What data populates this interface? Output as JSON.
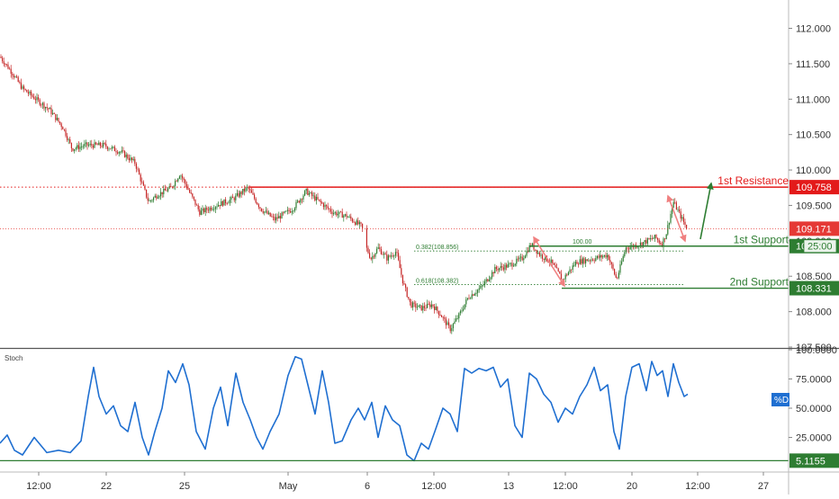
{
  "chart_data": [
    {
      "type": "candlestick",
      "ylim": [
        107.5,
        112.4
      ],
      "y_ticks": [
        {
          "value": 112.0,
          "label": "112.000"
        },
        {
          "value": 111.5,
          "label": "111.500"
        },
        {
          "value": 111.0,
          "label": "111.000"
        },
        {
          "value": 110.5,
          "label": "110.500"
        },
        {
          "value": 110.0,
          "label": "110.000"
        },
        {
          "value": 109.5,
          "label": "109.500"
        },
        {
          "value": 109.0,
          "label": "109.000"
        },
        {
          "value": 108.5,
          "label": "108.500"
        },
        {
          "value": 108.0,
          "label": "108.000"
        },
        {
          "value": 107.5,
          "label": "107.500"
        }
      ],
      "price_path": [
        [
          0,
          111.6
        ],
        [
          12,
          111.4
        ],
        [
          25,
          111.15
        ],
        [
          40,
          111.0
        ],
        [
          55,
          110.85
        ],
        [
          70,
          110.6
        ],
        [
          80,
          110.3
        ],
        [
          95,
          110.35
        ],
        [
          115,
          110.35
        ],
        [
          135,
          110.25
        ],
        [
          150,
          110.1
        ],
        [
          158,
          109.8
        ],
        [
          165,
          109.55
        ],
        [
          175,
          109.65
        ],
        [
          190,
          109.75
        ],
        [
          200,
          109.95
        ],
        [
          212,
          109.65
        ],
        [
          222,
          109.4
        ],
        [
          240,
          109.5
        ],
        [
          260,
          109.6
        ],
        [
          275,
          109.75
        ],
        [
          290,
          109.45
        ],
        [
          305,
          109.3
        ],
        [
          325,
          109.45
        ],
        [
          340,
          109.7
        ],
        [
          355,
          109.55
        ],
        [
          370,
          109.4
        ],
        [
          385,
          109.35
        ],
        [
          402,
          109.2
        ],
        [
          407,
          108.9
        ],
        [
          412,
          108.75
        ],
        [
          420,
          108.9
        ],
        [
          430,
          108.75
        ],
        [
          440,
          108.85
        ],
        [
          448,
          108.4
        ],
        [
          456,
          108.1
        ],
        [
          468,
          108.05
        ],
        [
          480,
          108.1
        ],
        [
          490,
          107.95
        ],
        [
          500,
          107.75
        ],
        [
          510,
          107.95
        ],
        [
          520,
          108.2
        ],
        [
          535,
          108.35
        ],
        [
          550,
          108.6
        ],
        [
          565,
          108.65
        ],
        [
          580,
          108.75
        ],
        [
          590,
          108.95
        ],
        [
          600,
          108.8
        ],
        [
          612,
          108.7
        ],
        [
          625,
          108.45
        ],
        [
          640,
          108.7
        ],
        [
          660,
          108.75
        ],
        [
          675,
          108.8
        ],
        [
          685,
          108.45
        ],
        [
          695,
          108.9
        ],
        [
          710,
          108.95
        ],
        [
          728,
          109.05
        ],
        [
          735,
          108.95
        ],
        [
          740,
          109.1
        ],
        [
          748,
          109.55
        ],
        [
          756,
          109.35
        ],
        [
          764,
          109.15
        ]
      ],
      "lines": [
        {
          "name": "1st Resistance",
          "value": 109.758,
          "color": "#e31a1a"
        },
        {
          "name": "1st Support",
          "value": 108.925,
          "color": "#2e7d32"
        },
        {
          "name": "2nd Support",
          "value": 108.331,
          "color": "#2e7d32"
        }
      ],
      "fib_levels": [
        {
          "label": "0.382(108.856)",
          "value": 108.856
        },
        {
          "label": "0.618(108.382)",
          "value": 108.382
        },
        {
          "label": "100.00",
          "value": 108.95
        }
      ],
      "current_price": {
        "label": "109.171",
        "value": 109.171,
        "color": "#e53935"
      },
      "price_tags": [
        {
          "label": "109.758",
          "value": 109.758,
          "color": "#e31a1a"
        },
        {
          "label": "10",
          "sub": "25:00",
          "value": 108.925,
          "color": "#2e7d32"
        },
        {
          "label": "108.331",
          "value": 108.331,
          "color": "#2e7d32"
        }
      ]
    },
    {
      "type": "line",
      "indicator_label": "Stoch",
      "ylim": [
        0,
        100
      ],
      "y_ticks": [
        {
          "value": 100,
          "label": "100.0000"
        },
        {
          "value": 75,
          "label": "75.0000"
        },
        {
          "value": 50,
          "label": "50.0000"
        },
        {
          "value": 25,
          "label": "25.0000"
        }
      ],
      "series": [
        {
          "name": "%D",
          "color": "#1f6fd1",
          "points": [
            [
              0,
              20
            ],
            [
              8,
              27
            ],
            [
              16,
              14
            ],
            [
              25,
              10
            ],
            [
              38,
              25
            ],
            [
              52,
              12
            ],
            [
              65,
              14
            ],
            [
              78,
              12
            ],
            [
              90,
              22
            ],
            [
              98,
              60
            ],
            [
              104,
              85
            ],
            [
              110,
              60
            ],
            [
              118,
              45
            ],
            [
              126,
              52
            ],
            [
              134,
              35
            ],
            [
              142,
              30
            ],
            [
              150,
              55
            ],
            [
              158,
              25
            ],
            [
              165,
              10
            ],
            [
              172,
              30
            ],
            [
              180,
              50
            ],
            [
              187,
              82
            ],
            [
              195,
              72
            ],
            [
              203,
              88
            ],
            [
              210,
              70
            ],
            [
              218,
              30
            ],
            [
              228,
              15
            ],
            [
              237,
              50
            ],
            [
              245,
              68
            ],
            [
              253,
              35
            ],
            [
              262,
              80
            ],
            [
              270,
              55
            ],
            [
              278,
              40
            ],
            [
              285,
              25
            ],
            [
              292,
              15
            ],
            [
              300,
              30
            ],
            [
              310,
              45
            ],
            [
              320,
              78
            ],
            [
              328,
              94
            ],
            [
              335,
              92
            ],
            [
              342,
              70
            ],
            [
              350,
              45
            ],
            [
              358,
              82
            ],
            [
              365,
              55
            ],
            [
              372,
              20
            ],
            [
              380,
              22
            ],
            [
              390,
              40
            ],
            [
              398,
              50
            ],
            [
              405,
              40
            ],
            [
              413,
              55
            ],
            [
              420,
              25
            ],
            [
              428,
              52
            ],
            [
              436,
              40
            ],
            [
              444,
              35
            ],
            [
              452,
              10
            ],
            [
              460,
              5
            ],
            [
              468,
              20
            ],
            [
              476,
              15
            ],
            [
              483,
              30
            ],
            [
              492,
              50
            ],
            [
              500,
              45
            ],
            [
              508,
              30
            ],
            [
              516,
              84
            ],
            [
              524,
              80
            ],
            [
              532,
              84
            ],
            [
              540,
              82
            ],
            [
              548,
              85
            ],
            [
              556,
              68
            ],
            [
              564,
              75
            ],
            [
              572,
              35
            ],
            [
              580,
              25
            ],
            [
              588,
              80
            ],
            [
              596,
              75
            ],
            [
              604,
              62
            ],
            [
              612,
              55
            ],
            [
              620,
              38
            ],
            [
              628,
              50
            ],
            [
              636,
              45
            ],
            [
              644,
              60
            ],
            [
              652,
              70
            ],
            [
              660,
              85
            ],
            [
              667,
              65
            ],
            [
              675,
              70
            ],
            [
              682,
              30
            ],
            [
              688,
              15
            ],
            [
              695,
              60
            ],
            [
              702,
              85
            ],
            [
              710,
              88
            ],
            [
              718,
              65
            ],
            [
              724,
              90
            ],
            [
              730,
              78
            ],
            [
              736,
              82
            ],
            [
              742,
              60
            ],
            [
              748,
              88
            ],
            [
              754,
              72
            ],
            [
              760,
              60
            ],
            [
              764,
              62
            ]
          ]
        }
      ],
      "lines": [
        {
          "value": 5.1155,
          "label": "5.1155",
          "color": "#2e7d32"
        }
      ],
      "badge": {
        "label": "%D",
        "color": "#1f6fd1"
      }
    }
  ],
  "x_labels": [
    {
      "label": "12:00",
      "x": 43
    },
    {
      "label": "22",
      "x": 118
    },
    {
      "label": "25",
      "x": 205
    },
    {
      "label": "May",
      "x": 320
    },
    {
      "label": "6",
      "x": 408
    },
    {
      "label": "12:00",
      "x": 482
    },
    {
      "label": "13",
      "x": 565
    },
    {
      "label": "12:00",
      "x": 628
    },
    {
      "label": "20",
      "x": 702
    },
    {
      "label": "12:00",
      "x": 775
    },
    {
      "label": "27",
      "x": 848
    }
  ],
  "colors": {
    "bull": "#2e7d32",
    "bear": "#c62828",
    "axis_text": "#333333",
    "gridline": "#d8d8d8",
    "fib_arrow": "#f08080",
    "target_arrow": "#2e7d32"
  }
}
